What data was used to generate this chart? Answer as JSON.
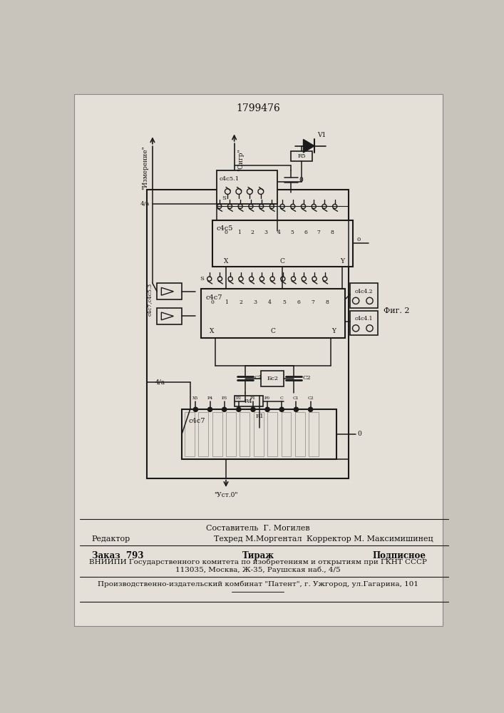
{
  "bg_color": "#c8c4bc",
  "paper_color": "#e4e0d8",
  "title": "1799476",
  "fig2_label": "Фиг. 2",
  "label_izmerenie": "\"Измерение\"",
  "label_sigr": "\"Сигр\"",
  "label_ust0": "\"Уст.0\"",
  "label_4a_top": "4/а",
  "label_4a_bot": "4/а",
  "label_0_top": "0",
  "label_0_bot": "0",
  "label_v1": "V1",
  "label_r5": "R5",
  "label_dd51": "с4с5.1",
  "label_dd5": "с4с5",
  "label_dd7_top": "с4с7",
  "label_dd7_bot": "с4с7",
  "label_dd7dd53": "с4с7,с4с5.3",
  "label_dd42": "с4с4.2",
  "label_dd41": "с4с4.1",
  "label_c1": "C1",
  "label_c2": "C2",
  "label_bc1": "Бс2",
  "label_r4": "R4",
  "label_r1": "R1",
  "line_color": "#1a1a1a",
  "box_color": "#1a1a1a",
  "text_color": "#111111",
  "footer_col1_line1": "Редактор",
  "footer_col2_line1": "Составитель  Г. Могилев",
  "footer_col3_line1": "",
  "footer_col2_line2": "Техред М.Моргентал",
  "footer_col3_line2": "Корректор М. Максимишинец",
  "footer_zak": "Заказ  793",
  "footer_tir": "Тираж",
  "footer_pod": "Подписное",
  "footer_vniip": "ВНИИПИ Государственного комитета по изобретениям и открытиям при ГКНТ СССР",
  "footer_addr": "113035, Москва, Ж-35, Раушская наб., 4/5",
  "footer_prod": "Производственно-издательский комбинат \"Патент\", г. Ужгород, ул.Гагарина, 101"
}
